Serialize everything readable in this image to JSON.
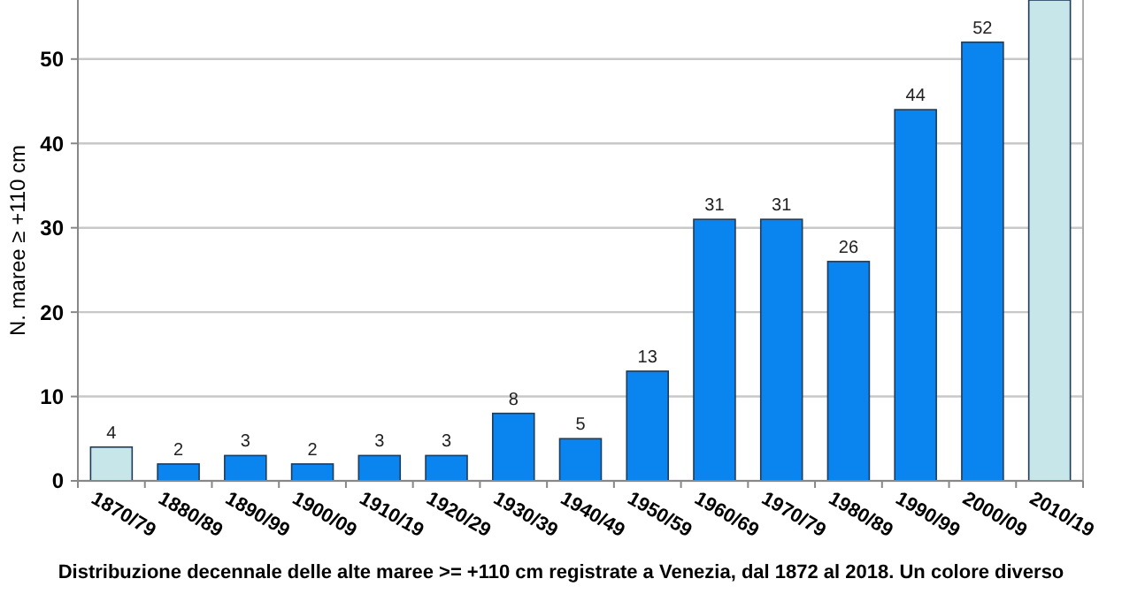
{
  "chart_data": {
    "type": "bar",
    "ylabel": "N. maree ≥ +110 cm",
    "categories": [
      "1870/79",
      "1880/89",
      "1890/99",
      "1900/09",
      "1910/19",
      "1920/29",
      "1930/39",
      "1940/49",
      "1950/59",
      "1960/69",
      "1970/79",
      "1980/89",
      "1990/99",
      "2000/09",
      "2010/19"
    ],
    "values": [
      4,
      2,
      3,
      2,
      3,
      3,
      8,
      5,
      13,
      31,
      31,
      26,
      44,
      52,
      57
    ],
    "value_labels": [
      "4",
      "2",
      "3",
      "2",
      "3",
      "3",
      "8",
      "5",
      "13",
      "31",
      "31",
      "26",
      "44",
      "52",
      null
    ],
    "colors": [
      "#c6e6ea",
      "#0a84ee",
      "#0a84ee",
      "#0a84ee",
      "#0a84ee",
      "#0a84ee",
      "#0a84ee",
      "#0a84ee",
      "#0a84ee",
      "#0a84ee",
      "#0a84ee",
      "#0a84ee",
      "#0a84ee",
      "#0a84ee",
      "#c6e6ea"
    ],
    "ylim": [
      0,
      57
    ],
    "yticks": [
      0,
      10,
      20,
      30,
      40,
      50
    ],
    "grid": "y",
    "annotations": [
      "Distribuzione decennale delle alte maree >= +110 cm registrate a Venezia, dal 1872 al 2018. Un colore diverso"
    ]
  }
}
